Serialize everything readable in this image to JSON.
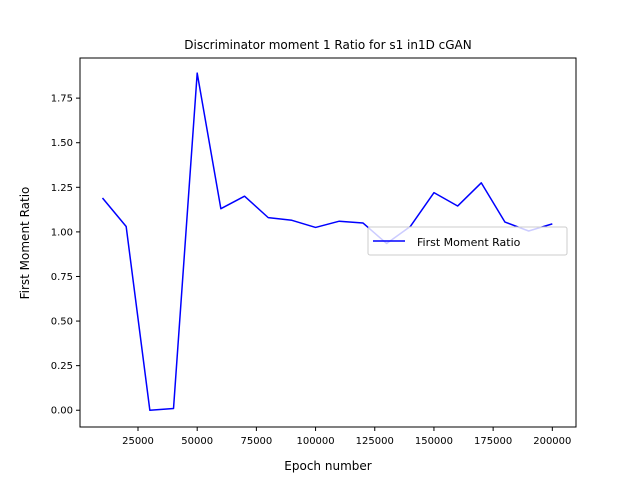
{
  "chart_data": {
    "type": "line",
    "title": "Discriminator moment 1 Ratio for s1 in1D cGAN",
    "xlabel": "Epoch number",
    "ylabel": "First Moment Ratio",
    "xlim": [
      500,
      210000
    ],
    "ylim": [
      -0.094,
      1.975
    ],
    "xticks": [
      25000,
      50000,
      75000,
      100000,
      125000,
      150000,
      175000,
      200000
    ],
    "xtick_labels": [
      "25000",
      "50000",
      "75000",
      "100000",
      "125000",
      "150000",
      "175000",
      "200000"
    ],
    "yticks": [
      0.0,
      0.25,
      0.5,
      0.75,
      1.0,
      1.25,
      1.5,
      1.75
    ],
    "ytick_labels": [
      "0.00",
      "0.25",
      "0.50",
      "0.75",
      "1.00",
      "1.25",
      "1.50",
      "1.75"
    ],
    "grid": false,
    "legend_position": "center-right",
    "series": [
      {
        "name": "First Moment Ratio",
        "color": "#0000ff",
        "x": [
          10000,
          20000,
          30000,
          40000,
          50000,
          60000,
          70000,
          80000,
          90000,
          100000,
          110000,
          120000,
          130000,
          140000,
          150000,
          160000,
          170000,
          180000,
          190000,
          200000
        ],
        "values": [
          1.19,
          1.03,
          0.0,
          0.01,
          1.89,
          1.13,
          1.2,
          1.08,
          1.065,
          1.025,
          1.06,
          1.05,
          0.935,
          1.03,
          1.22,
          1.145,
          1.275,
          1.055,
          1.005,
          1.045
        ]
      }
    ]
  }
}
